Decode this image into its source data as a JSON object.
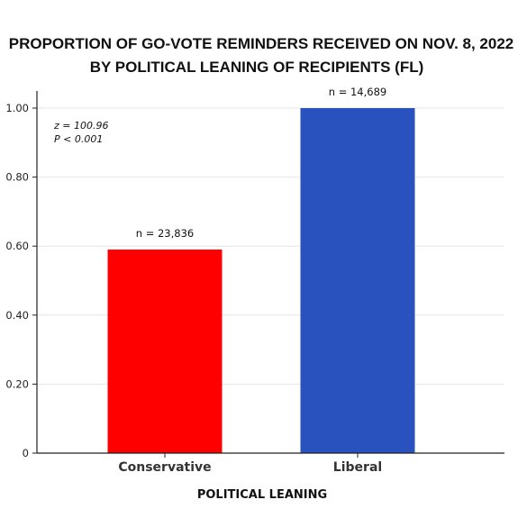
{
  "chart_data": {
    "type": "bar",
    "title_line1": "PROPORTION OF GO-VOTE REMINDERS RECEIVED ON NOV. 8, 2022",
    "title_line2": "BY POLITICAL LEANING OF RECIPIENTS (FL)",
    "xlabel": "POLITICAL LEANING",
    "ylabel": "",
    "categories": [
      "Conservative",
      "Liberal"
    ],
    "values": [
      0.59,
      1.0
    ],
    "bar_colors": [
      "#ff0000",
      "#2a52be"
    ],
    "data_labels": [
      "n = 23,836",
      "n = 14,689"
    ],
    "ylim": [
      0,
      1.0
    ],
    "yticks": [
      0,
      0.2,
      0.4,
      0.6,
      0.8,
      1.0
    ],
    "ytick_labels": [
      "0",
      "0.20",
      "0.40",
      "0.60",
      "0.80",
      "1.00"
    ],
    "annotation": [
      "z = 100.96",
      "P < 0.001"
    ],
    "grid": "horizontal",
    "legend": "none"
  }
}
